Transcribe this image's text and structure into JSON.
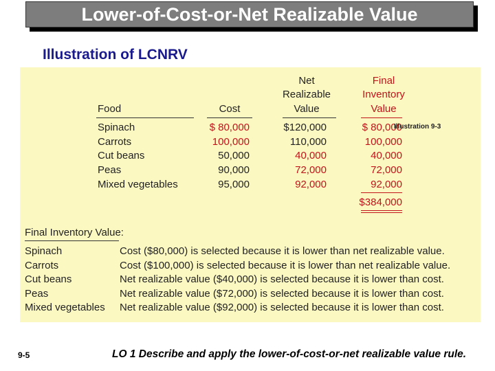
{
  "slide_title": "Lower-of-Cost-or-Net Realizable Value",
  "subtitle": "Illustration of LCNRV",
  "illustration_label": "Illustration 9-3",
  "table": {
    "headers": {
      "food": "Food",
      "cost": "Cost",
      "nrv_line1": "Net",
      "nrv_line2": "Realizable",
      "nrv_line3": "Value",
      "final_line1": "Final",
      "final_line2": "Inventory",
      "final_line3": "Value"
    },
    "rows": [
      {
        "food": "Spinach",
        "cost": "$ 80,000",
        "nrv": "$120,000",
        "final": "$ 80,000"
      },
      {
        "food": "Carrots",
        "cost": "100,000",
        "nrv": "110,000",
        "final": "100,000"
      },
      {
        "food": "Cut beans",
        "cost": "50,000",
        "nrv": "40,000",
        "final": "40,000"
      },
      {
        "food": "Peas",
        "cost": "90,000",
        "nrv": "72,000",
        "final": "72,000"
      },
      {
        "food": "Mixed vegetables",
        "cost": "95,000",
        "nrv": "92,000",
        "final": "92,000"
      }
    ],
    "total": "$384,000"
  },
  "explanation": {
    "heading": "Final Inventory Value:",
    "rows": [
      {
        "item": "Spinach",
        "text": "Cost ($80,000) is selected because it is lower than net realizable value."
      },
      {
        "item": "Carrots",
        "text": "Cost ($100,000) is selected because it is lower than net realizable value."
      },
      {
        "item": "Cut beans",
        "text": "Net realizable value ($40,000) is selected because it is lower than cost."
      },
      {
        "item": "Peas",
        "text": "Net realizable value ($72,000) is selected because it is lower than cost."
      },
      {
        "item": "Mixed vegetables",
        "text": "Net realizable value ($92,000) is selected because it is lower than cost."
      }
    ]
  },
  "footer": {
    "slide_number": "9-5",
    "learning_objective": "LO 1  Describe and apply the lower-of-cost-or-net realizable value rule."
  },
  "colors": {
    "title_bg": "#7d7d7d",
    "subtitle": "#1a1a8c",
    "panel_bg": "#fcf8c2",
    "emphasis_red": "#c0131a"
  }
}
